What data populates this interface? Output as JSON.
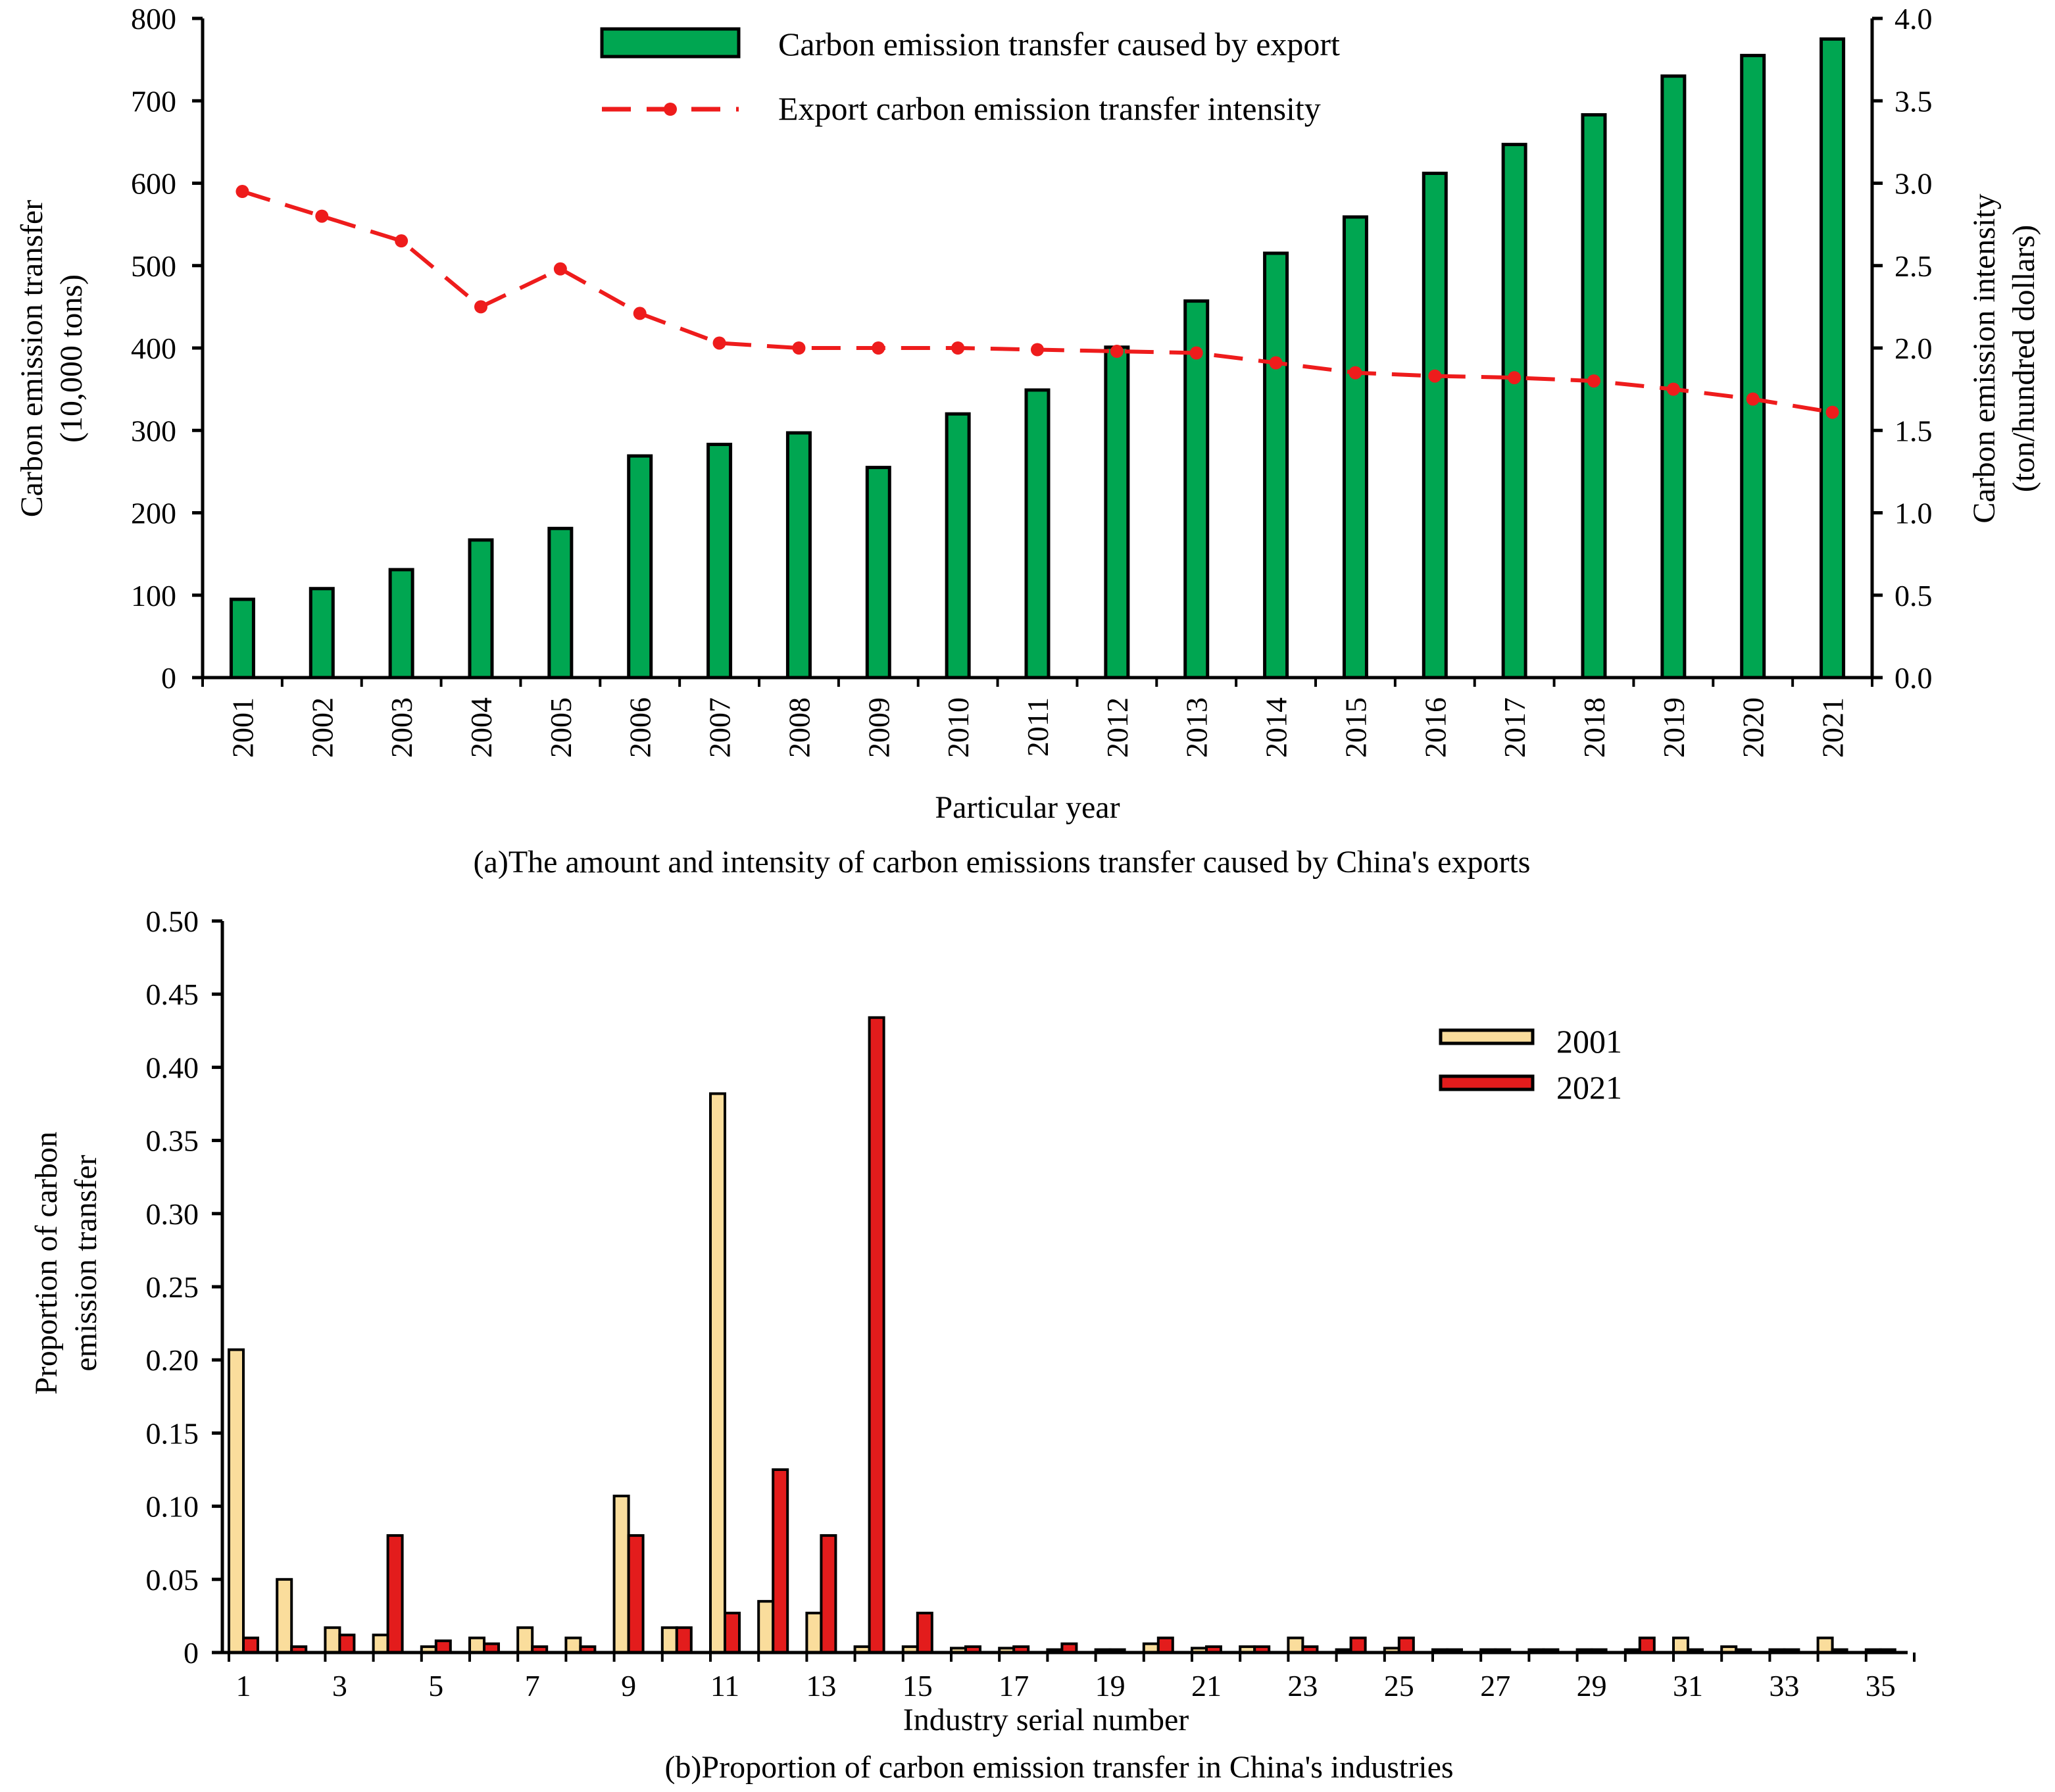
{
  "chart_data": [
    {
      "type": "bar",
      "caption": "(a)The amount and intensity of carbon emissions transfer caused by China's exports",
      "xlabel": "Particular year",
      "ylabel_lines": [
        "Carbon emission transfer",
        "(10,000 tons)"
      ],
      "y2label_lines": [
        "Carbon emission intensity",
        "(ton/hundred dollars)"
      ],
      "ylim": [
        0,
        800
      ],
      "yticks": [
        "0",
        "100",
        "200",
        "300",
        "400",
        "500",
        "600",
        "700",
        "800"
      ],
      "y2lim": [
        0,
        4.0
      ],
      "y2ticks": [
        "0.0",
        "0.5",
        "1.0",
        "1.5",
        "2.0",
        "2.5",
        "3.0",
        "3.5",
        "4.0"
      ],
      "categories": [
        "2001",
        "2002",
        "2003",
        "2004",
        "2005",
        "2006",
        "2007",
        "2008",
        "2009",
        "2010",
        "2011",
        "2012",
        "2013",
        "2014",
        "2015",
        "2016",
        "2017",
        "2018",
        "2019",
        "2020",
        "2021"
      ],
      "series": [
        {
          "name": "Carbon emission transfer caused by export",
          "type": "bar",
          "axis": "left",
          "color": "#00a651",
          "values": [
            95,
            108,
            131,
            167,
            181,
            269,
            283,
            297,
            255,
            320,
            349,
            401,
            457,
            515,
            559,
            612,
            647,
            683,
            730,
            755,
            775
          ]
        },
        {
          "name": "Export carbon emission transfer intensity",
          "type": "line",
          "axis": "right",
          "color": "#ee1c1c",
          "values": [
            2.95,
            2.8,
            2.65,
            2.25,
            2.48,
            2.21,
            2.03,
            2.0,
            2.0,
            2.0,
            1.99,
            1.98,
            1.97,
            1.91,
            1.85,
            1.83,
            1.82,
            1.8,
            1.75,
            1.69,
            1.61
          ]
        }
      ]
    },
    {
      "type": "bar",
      "caption": "(b)Proportion of carbon emission transfer in China's industries",
      "xlabel": "Industry serial number",
      "ylabel_lines": [
        "Proportion of carbon",
        "emission transfer"
      ],
      "ylim": [
        0,
        0.5
      ],
      "yticks": [
        "0",
        "0.05",
        "0.10",
        "0.15",
        "0.20",
        "0.25",
        "0.30",
        "0.35",
        "0.40",
        "0.45",
        "0.50"
      ],
      "categories": [
        "1",
        "2",
        "3",
        "4",
        "5",
        "6",
        "7",
        "8",
        "9",
        "10",
        "11",
        "12",
        "13",
        "14",
        "15",
        "16",
        "17",
        "18",
        "19",
        "20",
        "21",
        "22",
        "23",
        "24",
        "25",
        "26",
        "27",
        "28",
        "29",
        "30",
        "31",
        "32",
        "33",
        "34",
        "35"
      ],
      "xtick_labels": [
        "1",
        "3",
        "5",
        "7",
        "9",
        "11",
        "13",
        "15",
        "17",
        "19",
        "21",
        "23",
        "25",
        "27",
        "29",
        "31",
        "33",
        "35"
      ],
      "series": [
        {
          "name": "2001",
          "color": "#fadd9c",
          "values": [
            0.207,
            0.05,
            0.017,
            0.012,
            0.004,
            0.01,
            0.017,
            0.01,
            0.107,
            0.017,
            0.382,
            0.035,
            0.027,
            0.004,
            0.004,
            0.003,
            0.003,
            0.002,
            0.002,
            0.006,
            0.003,
            0.004,
            0.01,
            0.002,
            0.003,
            0.002,
            0.002,
            0.002,
            0.002,
            0.002,
            0.01,
            0.004,
            0.002,
            0.01,
            0.002
          ]
        },
        {
          "name": "2021",
          "color": "#e31c1c",
          "values": [
            0.01,
            0.004,
            0.012,
            0.08,
            0.008,
            0.006,
            0.004,
            0.004,
            0.08,
            0.017,
            0.027,
            0.125,
            0.08,
            0.434,
            0.027,
            0.004,
            0.004,
            0.006,
            0.002,
            0.01,
            0.004,
            0.004,
            0.004,
            0.01,
            0.01,
            0.002,
            0.002,
            0.002,
            0.002,
            0.01,
            0.002,
            0.002,
            0.002,
            0.002,
            0.002
          ]
        }
      ]
    }
  ]
}
